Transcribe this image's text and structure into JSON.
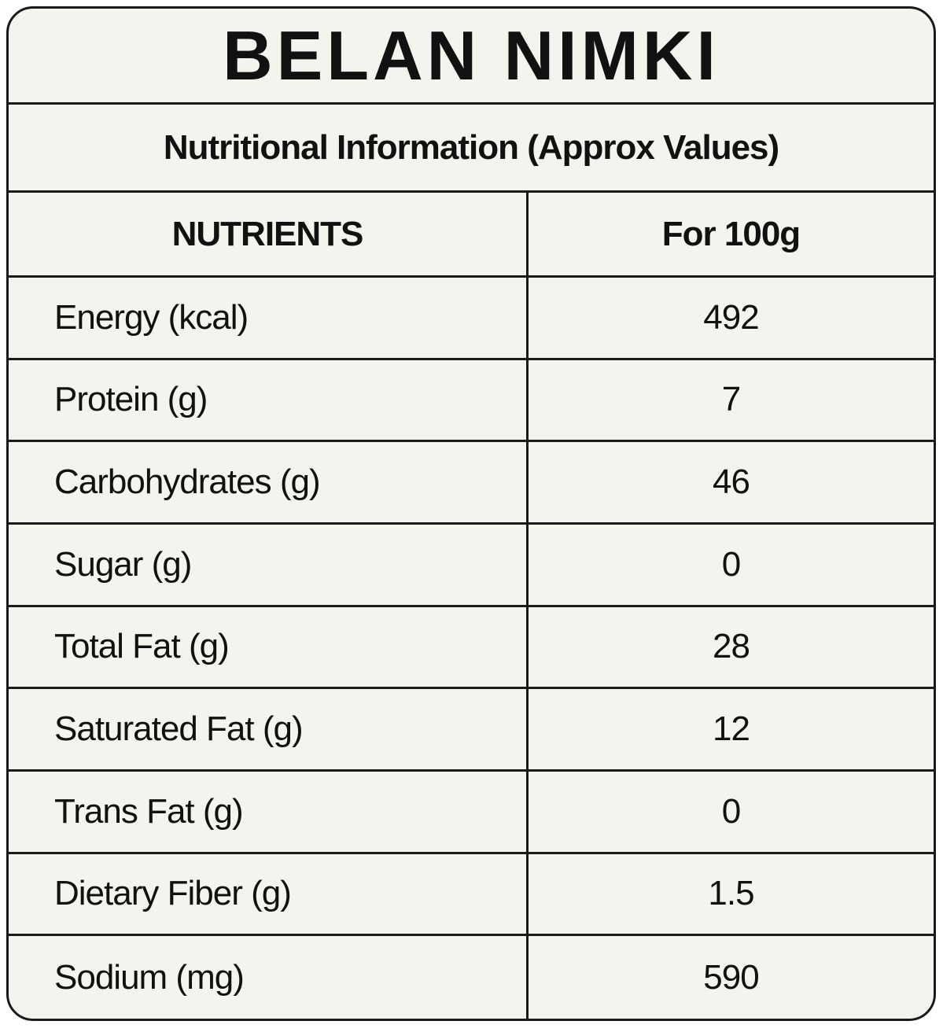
{
  "title": "BELAN NIMKI",
  "subtitle": "Nutritional Information (Approx Values)",
  "table": {
    "header": [
      "NUTRIENTS",
      "For 100g"
    ],
    "rows": [
      [
        "Energy (kcal)",
        492
      ],
      [
        "Protein (g)",
        7
      ],
      [
        "Carbohydrates (g)",
        46
      ],
      [
        "Sugar (g)",
        0
      ],
      [
        "Total Fat (g)",
        28
      ],
      [
        "Saturated Fat (g)",
        12
      ],
      [
        "Trans Fat (g)",
        0
      ],
      [
        "Dietary Fiber (g)",
        1.5
      ],
      [
        "Sodium (mg)",
        590
      ]
    ]
  }
}
